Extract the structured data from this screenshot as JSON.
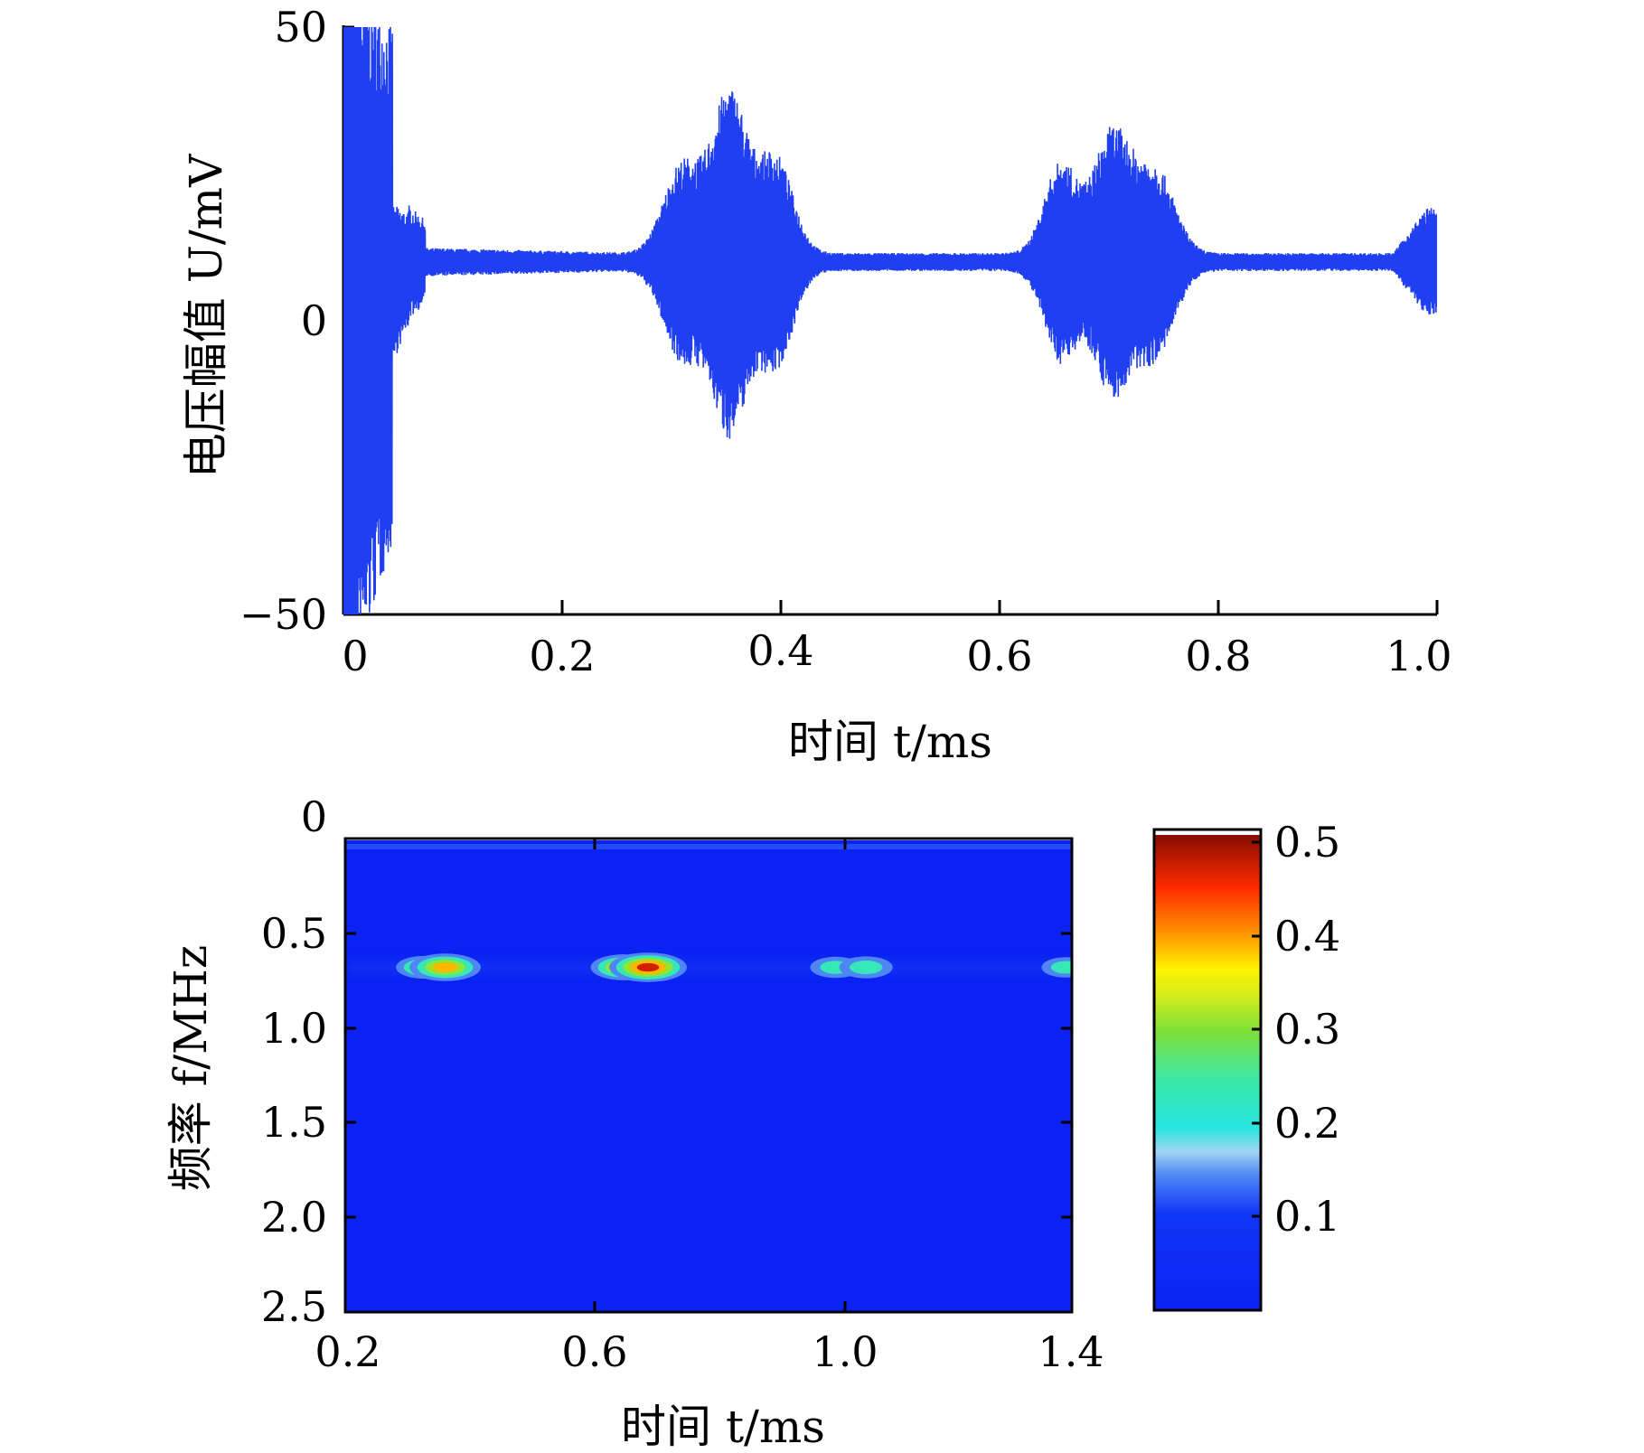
{
  "chart_data": [
    {
      "type": "line",
      "xlabel": "时间 t/ms",
      "ylabel": "电压幅值 U/mV",
      "xlim": [
        0,
        1.0
      ],
      "ylim": [
        -50,
        50
      ],
      "xticks": [
        "0",
        "0.2",
        "0.4",
        "0.6",
        "0.8",
        "1.0"
      ],
      "yticks": [
        "50",
        "0",
        "−50"
      ],
      "series": [
        {
          "color": "#1f3ff0",
          "description_points": [
            {
              "t": 0.0,
              "u": 50
            },
            {
              "t": 0.001,
              "u": -50
            },
            {
              "t": 0.004,
              "u": 50
            },
            {
              "t": 0.01,
              "u": -50
            },
            {
              "t": 0.02,
              "u": -35
            },
            {
              "t": 0.03,
              "u": -20
            },
            {
              "t": 0.04,
              "u": 29
            },
            {
              "t": 0.06,
              "u": 15
            },
            {
              "t": 0.1,
              "u": 12
            },
            {
              "t": 0.2,
              "u": 10
            },
            {
              "t": 0.27,
              "u": 10
            },
            {
              "t": 0.31,
              "u": 24
            },
            {
              "t": 0.35,
              "u": 34
            },
            {
              "t": 0.37,
              "u": -15
            },
            {
              "t": 0.395,
              "u": 24
            },
            {
              "t": 0.45,
              "u": 11
            },
            {
              "t": 0.5,
              "u": 10
            },
            {
              "t": 0.6,
              "u": 10
            },
            {
              "t": 0.655,
              "u": 24
            },
            {
              "t": 0.7,
              "u": 28
            },
            {
              "t": 0.705,
              "u": -9
            },
            {
              "t": 0.74,
              "u": 23
            },
            {
              "t": 0.8,
              "u": 10
            },
            {
              "t": 0.95,
              "u": 10
            },
            {
              "t": 0.99,
              "u": 17
            },
            {
              "t": 1.0,
              "u": 0
            }
          ],
          "envelope": {
            "baseline": 10,
            "bursts": [
              {
                "center": 0.31,
                "width": 0.017,
                "amp": 14
              },
              {
                "center": 0.353,
                "width": 0.016,
                "amp": 25
              },
              {
                "center": 0.395,
                "width": 0.016,
                "amp": 15
              },
              {
                "center": 0.656,
                "width": 0.015,
                "amp": 14
              },
              {
                "center": 0.703,
                "width": 0.017,
                "amp": 19
              },
              {
                "center": 0.743,
                "width": 0.017,
                "amp": 13
              }
            ]
          }
        }
      ]
    },
    {
      "type": "heatmap",
      "xlabel": "时间 t/ms",
      "ylabel": "频率 f/MHz",
      "xlim": [
        0.2,
        1.4
      ],
      "ylim": [
        0,
        2.5
      ],
      "y_inverted": true,
      "xticks": [
        "0.2",
        "0.6",
        "1.0",
        "1.4"
      ],
      "yticks": [
        "0",
        "0.5",
        "1.0",
        "1.5",
        "2.0",
        "2.5"
      ],
      "colorbar": {
        "ticks": [
          "0.5",
          "0.4",
          "0.3",
          "0.2",
          "0.1"
        ],
        "range": [
          0,
          0.5
        ],
        "colormap": "jet"
      },
      "background_value": 0.02,
      "hotspots": [
        {
          "t": 0.33,
          "f": 0.68,
          "value": 0.3
        },
        {
          "t": 0.365,
          "f": 0.68,
          "value": 0.42
        },
        {
          "t": 0.4,
          "f": 0.68,
          "value": 0.12
        },
        {
          "t": 0.66,
          "f": 0.68,
          "value": 0.38
        },
        {
          "t": 0.7,
          "f": 0.68,
          "value": 0.47
        },
        {
          "t": 1.01,
          "f": 0.68,
          "value": 0.26
        },
        {
          "t": 1.06,
          "f": 0.68,
          "value": 0.28
        },
        {
          "t": 1.39,
          "f": 0.68,
          "value": 0.24
        }
      ]
    }
  ]
}
